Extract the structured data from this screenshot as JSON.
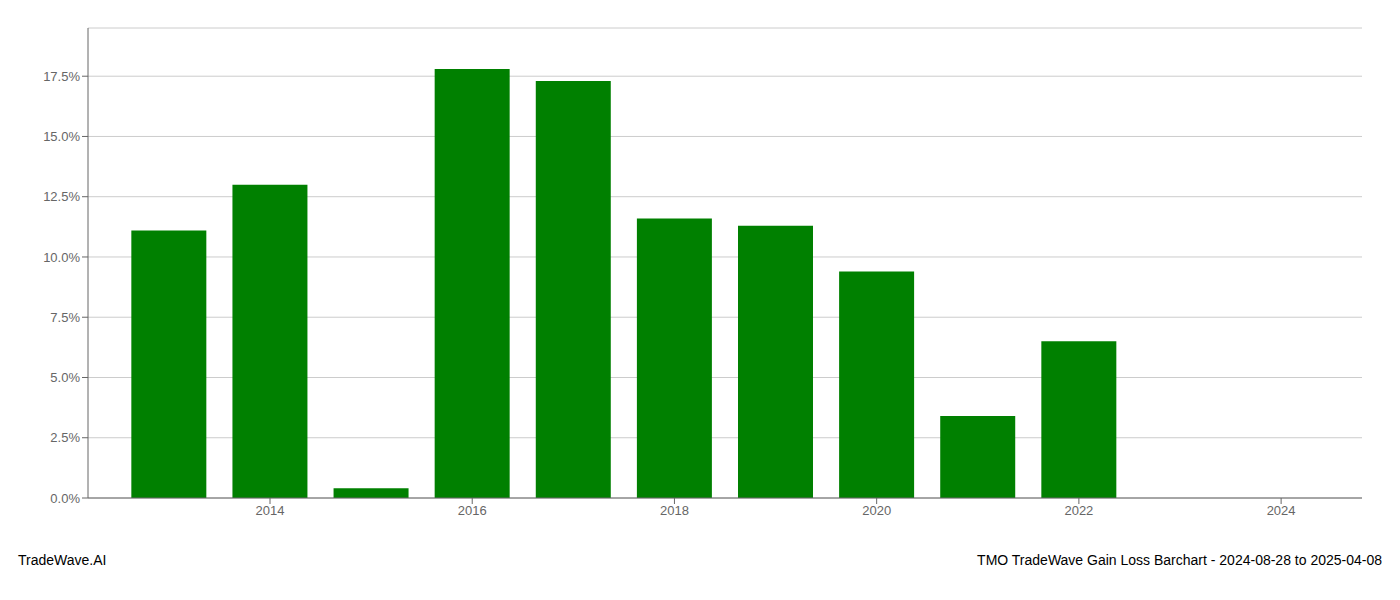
{
  "chart_data": {
    "type": "bar",
    "x": [
      2013,
      2014,
      2015,
      2016,
      2017,
      2018,
      2019,
      2020,
      2021,
      2022,
      2023
    ],
    "values": [
      0.111,
      0.13,
      0.004,
      0.178,
      0.173,
      0.116,
      0.113,
      0.094,
      0.034,
      0.065,
      0.0
    ],
    "color": "#008000",
    "xlim": [
      2012.2,
      2024.8
    ],
    "xticks": [
      2014,
      2016,
      2018,
      2020,
      2022,
      2024
    ],
    "ylim": [
      0,
      0.195
    ],
    "yticks": [
      {
        "value": 0.0,
        "label": "0.0%"
      },
      {
        "value": 0.025,
        "label": "2.5%"
      },
      {
        "value": 0.05,
        "label": "5.0%"
      },
      {
        "value": 0.075,
        "label": "7.5%"
      },
      {
        "value": 0.1,
        "label": "10.0%"
      },
      {
        "value": 0.125,
        "label": "12.5%"
      },
      {
        "value": 0.15,
        "label": "15.0%"
      },
      {
        "value": 0.175,
        "label": "17.5%"
      }
    ],
    "grid": true,
    "annotations": [
      "TradeWave.AI",
      "TMO TradeWave Gain Loss Barchart - 2024-08-28 to 2025-04-08"
    ]
  }
}
